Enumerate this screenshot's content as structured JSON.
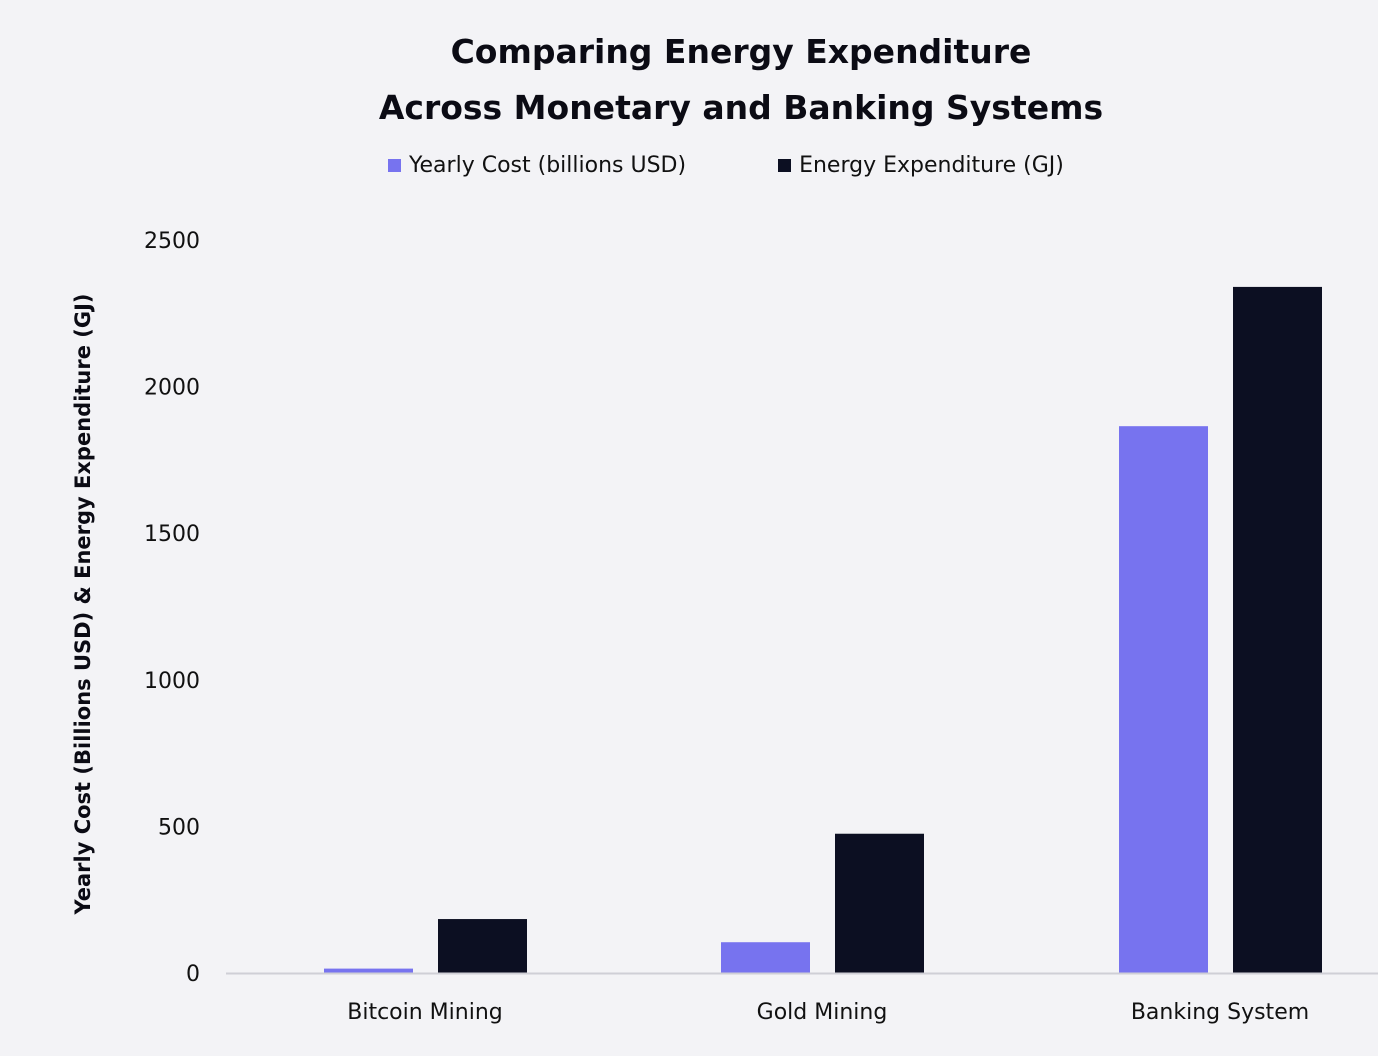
{
  "chart_data": {
    "type": "bar",
    "title_lines": [
      "Comparing Energy Expenditure",
      "Across Monetary and Banking Systems"
    ],
    "ylabel": "Yearly Cost (Billions USD) & Energy Expenditure (GJ)",
    "xlabel": "",
    "categories": [
      "Bitcoin Mining",
      "Gold Mining",
      "Banking System"
    ],
    "ylim": [
      0,
      2500
    ],
    "yticks": [
      0,
      500,
      1000,
      1500,
      2000,
      2500
    ],
    "grid": false,
    "legend_position": "top-center",
    "series": [
      {
        "name": "Yearly Cost (billions USD)",
        "color": "#7773ef",
        "values": [
          15,
          105,
          1865
        ]
      },
      {
        "name": "Energy Expenditure (GJ)",
        "color": "#0c0f22",
        "values": [
          184,
          475,
          2340
        ]
      }
    ],
    "axis_color": "#cfcfd6"
  }
}
